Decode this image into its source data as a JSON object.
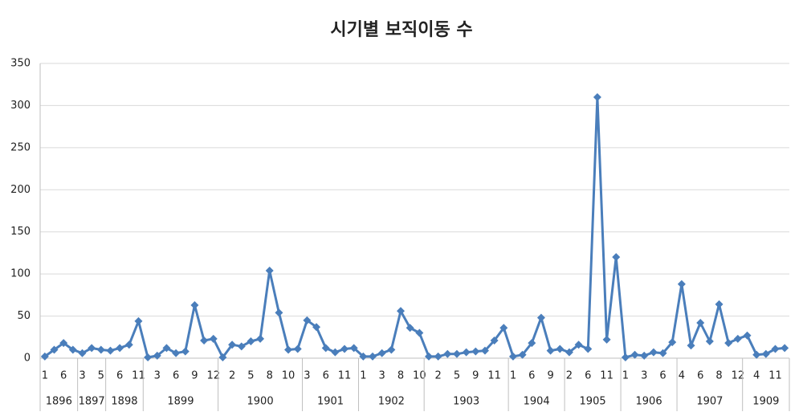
{
  "chart_data": {
    "type": "line",
    "title": "시기별 보직이동 수",
    "categories": [
      "1",
      null,
      "6",
      null,
      "3",
      null,
      "5",
      null,
      "6",
      null,
      "11",
      null,
      "3",
      null,
      "6",
      null,
      "9",
      null,
      "12",
      null,
      "2",
      null,
      "5",
      null,
      "8",
      null,
      "10",
      null,
      "3",
      null,
      "6",
      null,
      "11",
      null,
      "1",
      null,
      "3",
      null,
      "8",
      null,
      "10",
      null,
      "2",
      null,
      "5",
      null,
      "9",
      null,
      "11",
      null,
      "1",
      null,
      "6",
      null,
      "9",
      null,
      "2",
      null,
      "6",
      null,
      "11",
      null,
      "1",
      null,
      "3",
      null,
      "6",
      null,
      "4",
      null,
      "6",
      null,
      "8",
      null,
      "12",
      null,
      "4",
      null,
      "11",
      null
    ],
    "groups": [
      "1896",
      "1896",
      "1896",
      "1896",
      "1897",
      "1897",
      "1897",
      "1898",
      "1898",
      "1898",
      "1898",
      "1899",
      "1899",
      "1899",
      "1899",
      "1899",
      "1899",
      "1899",
      "1899",
      "1900",
      "1900",
      "1900",
      "1900",
      "1900",
      "1900",
      "1900",
      "1900",
      "1900",
      "1901",
      "1901",
      "1901",
      "1901",
      "1901",
      "1901",
      "1902",
      "1902",
      "1902",
      "1902",
      "1902",
      "1902",
      "1902",
      "1903",
      "1903",
      "1903",
      "1903",
      "1903",
      "1903",
      "1903",
      "1903",
      "1903",
      "1904",
      "1904",
      "1904",
      "1904",
      "1904",
      "1904",
      "1905",
      "1905",
      "1905",
      "1905",
      "1905",
      "1905",
      "1906",
      "1906",
      "1906",
      "1906",
      "1906",
      "1906",
      "1907",
      "1907",
      "1907",
      "1907",
      "1907",
      "1907",
      "1907",
      "1909",
      "1909",
      "1909",
      "1909",
      "1909"
    ],
    "series": [
      {
        "name": "보직이동 수",
        "color": "#4a7ebb",
        "values": [
          2,
          10,
          18,
          10,
          6,
          12,
          10,
          9,
          12,
          16,
          44,
          1,
          3,
          12,
          6,
          8,
          63,
          21,
          23,
          1,
          16,
          14,
          20,
          23,
          104,
          54,
          10,
          11,
          45,
          37,
          12,
          7,
          11,
          12,
          2,
          2,
          6,
          10,
          56,
          36,
          30,
          2,
          2,
          5,
          5,
          7,
          8,
          9,
          21,
          36,
          2,
          4,
          18,
          48,
          9,
          11,
          7,
          16,
          11,
          310,
          22,
          120,
          1,
          4,
          3,
          7,
          6,
          19,
          88,
          15,
          42,
          20,
          64,
          18,
          23,
          27,
          4,
          5,
          11,
          12
        ]
      }
    ],
    "ylim": [
      0,
      350
    ],
    "yticks": [
      0,
      50,
      100,
      150,
      200,
      250,
      300,
      350
    ],
    "grid": true
  }
}
